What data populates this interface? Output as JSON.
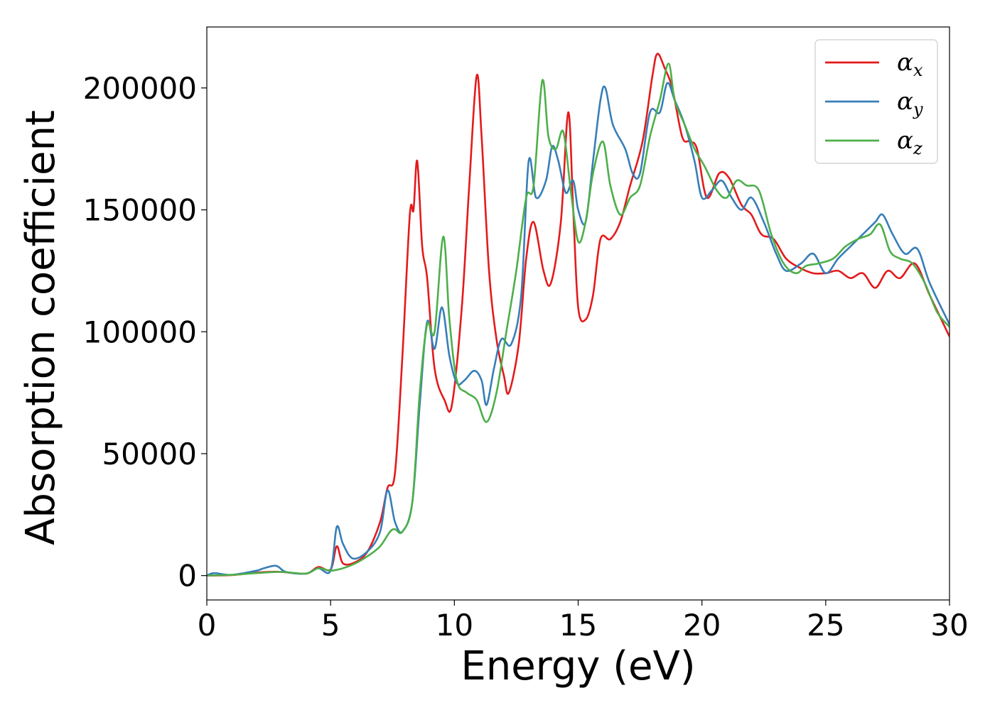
{
  "chart_data": {
    "type": "line",
    "xlabel": "Energy (eV)",
    "ylabel": "Absorption coefficient",
    "xlim": [
      0,
      30
    ],
    "ylim": [
      -10000,
      225000
    ],
    "xticks": [
      "0",
      "5",
      "10",
      "15",
      "20",
      "25",
      "30"
    ],
    "yticks": [
      "0",
      "50000",
      "100000",
      "150000",
      "200000"
    ],
    "grid": false,
    "legend_position": "top-right",
    "series": [
      {
        "name": "x",
        "color": "#e41a1c",
        "points": [
          [
            0,
            0
          ],
          [
            1,
            200
          ],
          [
            2,
            1200
          ],
          [
            2.5,
            1500
          ],
          [
            3,
            1500
          ],
          [
            4,
            800
          ],
          [
            4.5,
            3500
          ],
          [
            5,
            2500
          ],
          [
            5.25,
            12000
          ],
          [
            5.5,
            5000
          ],
          [
            6,
            5500
          ],
          [
            6.5,
            10000
          ],
          [
            7,
            22000
          ],
          [
            7.3,
            36000
          ],
          [
            7.6,
            42000
          ],
          [
            7.9,
            90000
          ],
          [
            8.2,
            148000
          ],
          [
            8.35,
            150000
          ],
          [
            8.5,
            170000
          ],
          [
            8.7,
            135000
          ],
          [
            8.9,
            122000
          ],
          [
            9.2,
            85000
          ],
          [
            9.6,
            72000
          ],
          [
            9.9,
            70000
          ],
          [
            10.3,
            110000
          ],
          [
            10.6,
            160000
          ],
          [
            10.9,
            205000
          ],
          [
            11.1,
            180000
          ],
          [
            11.4,
            125000
          ],
          [
            11.7,
            97000
          ],
          [
            12.0,
            82000
          ],
          [
            12.2,
            75000
          ],
          [
            12.6,
            95000
          ],
          [
            12.9,
            130000
          ],
          [
            13.2,
            145000
          ],
          [
            13.6,
            125000
          ],
          [
            13.9,
            120000
          ],
          [
            14.3,
            145000
          ],
          [
            14.6,
            190000
          ],
          [
            14.8,
            150000
          ],
          [
            15.0,
            110000
          ],
          [
            15.3,
            105000
          ],
          [
            15.6,
            115000
          ],
          [
            15.9,
            138000
          ],
          [
            16.3,
            138000
          ],
          [
            16.7,
            145000
          ],
          [
            17.1,
            160000
          ],
          [
            17.6,
            178000
          ],
          [
            18.0,
            205000
          ],
          [
            18.2,
            214000
          ],
          [
            18.5,
            208000
          ],
          [
            18.8,
            200000
          ],
          [
            19.2,
            180000
          ],
          [
            19.5,
            178000
          ],
          [
            19.8,
            175000
          ],
          [
            20.2,
            155000
          ],
          [
            20.7,
            165000
          ],
          [
            21.1,
            163000
          ],
          [
            21.6,
            152000
          ],
          [
            22.0,
            148000
          ],
          [
            22.4,
            140000
          ],
          [
            22.9,
            138000
          ],
          [
            23.4,
            130000
          ],
          [
            24.0,
            126000
          ],
          [
            24.5,
            124000
          ],
          [
            25.0,
            124000
          ],
          [
            25.5,
            125000
          ],
          [
            26.0,
            122000
          ],
          [
            26.5,
            124000
          ],
          [
            27.0,
            118000
          ],
          [
            27.5,
            125000
          ],
          [
            28.0,
            122000
          ],
          [
            28.6,
            128000
          ],
          [
            29.2,
            115000
          ],
          [
            30,
            98000
          ]
        ]
      },
      {
        "name": "y",
        "color": "#377eb8",
        "points": [
          [
            0,
            0
          ],
          [
            0.3,
            1000
          ],
          [
            1,
            300
          ],
          [
            2,
            2000
          ],
          [
            2.3,
            3000
          ],
          [
            2.8,
            4000
          ],
          [
            3.2,
            1500
          ],
          [
            4,
            800
          ],
          [
            4.5,
            3000
          ],
          [
            5,
            2000
          ],
          [
            5.25,
            20000
          ],
          [
            5.5,
            13000
          ],
          [
            5.9,
            7000
          ],
          [
            6.5,
            10000
          ],
          [
            7.0,
            18000
          ],
          [
            7.3,
            35000
          ],
          [
            7.6,
            22000
          ],
          [
            7.9,
            18000
          ],
          [
            8.3,
            30000
          ],
          [
            8.6,
            70000
          ],
          [
            8.9,
            104000
          ],
          [
            9.2,
            93000
          ],
          [
            9.5,
            110000
          ],
          [
            9.8,
            90000
          ],
          [
            10.1,
            79000
          ],
          [
            10.4,
            80000
          ],
          [
            10.8,
            84000
          ],
          [
            11.1,
            80000
          ],
          [
            11.3,
            70000
          ],
          [
            11.6,
            85000
          ],
          [
            11.9,
            97000
          ],
          [
            12.3,
            95000
          ],
          [
            12.7,
            115000
          ],
          [
            13.0,
            170000
          ],
          [
            13.3,
            155000
          ],
          [
            13.7,
            162000
          ],
          [
            13.95,
            176000
          ],
          [
            14.2,
            170000
          ],
          [
            14.5,
            157000
          ],
          [
            14.8,
            162000
          ],
          [
            15.0,
            150000
          ],
          [
            15.3,
            145000
          ],
          [
            15.6,
            170000
          ],
          [
            15.9,
            195000
          ],
          [
            16.1,
            200000
          ],
          [
            16.4,
            185000
          ],
          [
            16.9,
            175000
          ],
          [
            17.2,
            165000
          ],
          [
            17.5,
            165000
          ],
          [
            17.9,
            190000
          ],
          [
            18.3,
            190000
          ],
          [
            18.6,
            202000
          ],
          [
            18.9,
            195000
          ],
          [
            19.3,
            185000
          ],
          [
            19.7,
            170000
          ],
          [
            20.0,
            155000
          ],
          [
            20.4,
            158000
          ],
          [
            20.8,
            162000
          ],
          [
            21.2,
            155000
          ],
          [
            21.6,
            150000
          ],
          [
            22.0,
            155000
          ],
          [
            22.5,
            145000
          ],
          [
            23.0,
            132000
          ],
          [
            23.4,
            125000
          ],
          [
            24.0,
            128000
          ],
          [
            24.5,
            132000
          ],
          [
            25.0,
            124000
          ],
          [
            25.5,
            130000
          ],
          [
            26.0,
            135000
          ],
          [
            26.5,
            140000
          ],
          [
            27.0,
            145000
          ],
          [
            27.3,
            148000
          ],
          [
            27.7,
            140000
          ],
          [
            28.2,
            132000
          ],
          [
            28.7,
            134000
          ],
          [
            29.2,
            120000
          ],
          [
            30,
            103000
          ]
        ]
      },
      {
        "name": "z",
        "color": "#4daf4a",
        "points": [
          [
            0,
            0
          ],
          [
            1,
            300
          ],
          [
            2,
            1000
          ],
          [
            3,
            1500
          ],
          [
            4,
            800
          ],
          [
            4.5,
            3000
          ],
          [
            5,
            2000
          ],
          [
            5.5,
            3000
          ],
          [
            6,
            5000
          ],
          [
            6.5,
            8000
          ],
          [
            7.0,
            12000
          ],
          [
            7.4,
            18000
          ],
          [
            7.6,
            19000
          ],
          [
            7.9,
            18000
          ],
          [
            8.3,
            30000
          ],
          [
            8.6,
            75000
          ],
          [
            8.9,
            103000
          ],
          [
            9.2,
            100000
          ],
          [
            9.55,
            139000
          ],
          [
            9.8,
            105000
          ],
          [
            10.1,
            80000
          ],
          [
            10.5,
            75000
          ],
          [
            10.9,
            72000
          ],
          [
            11.3,
            63000
          ],
          [
            11.7,
            75000
          ],
          [
            12.1,
            100000
          ],
          [
            12.5,
            125000
          ],
          [
            12.9,
            155000
          ],
          [
            13.2,
            160000
          ],
          [
            13.55,
            203000
          ],
          [
            13.8,
            180000
          ],
          [
            14.1,
            175000
          ],
          [
            14.4,
            182000
          ],
          [
            14.7,
            158000
          ],
          [
            15.0,
            137000
          ],
          [
            15.3,
            145000
          ],
          [
            15.6,
            165000
          ],
          [
            16.0,
            178000
          ],
          [
            16.3,
            160000
          ],
          [
            16.7,
            148000
          ],
          [
            17.1,
            155000
          ],
          [
            17.5,
            160000
          ],
          [
            17.9,
            180000
          ],
          [
            18.3,
            195000
          ],
          [
            18.65,
            210000
          ],
          [
            18.9,
            195000
          ],
          [
            19.3,
            185000
          ],
          [
            19.7,
            175000
          ],
          [
            20.1,
            168000
          ],
          [
            20.6,
            158000
          ],
          [
            21.0,
            155000
          ],
          [
            21.4,
            162000
          ],
          [
            21.8,
            160000
          ],
          [
            22.3,
            158000
          ],
          [
            22.8,
            140000
          ],
          [
            23.3,
            128000
          ],
          [
            23.8,
            124000
          ],
          [
            24.2,
            127000
          ],
          [
            24.7,
            128000
          ],
          [
            25.3,
            130000
          ],
          [
            25.8,
            135000
          ],
          [
            26.3,
            138000
          ],
          [
            26.8,
            140000
          ],
          [
            27.2,
            144000
          ],
          [
            27.6,
            133000
          ],
          [
            28.0,
            130000
          ],
          [
            28.5,
            128000
          ],
          [
            29.0,
            120000
          ],
          [
            29.5,
            108000
          ],
          [
            30,
            102000
          ]
        ]
      }
    ]
  }
}
